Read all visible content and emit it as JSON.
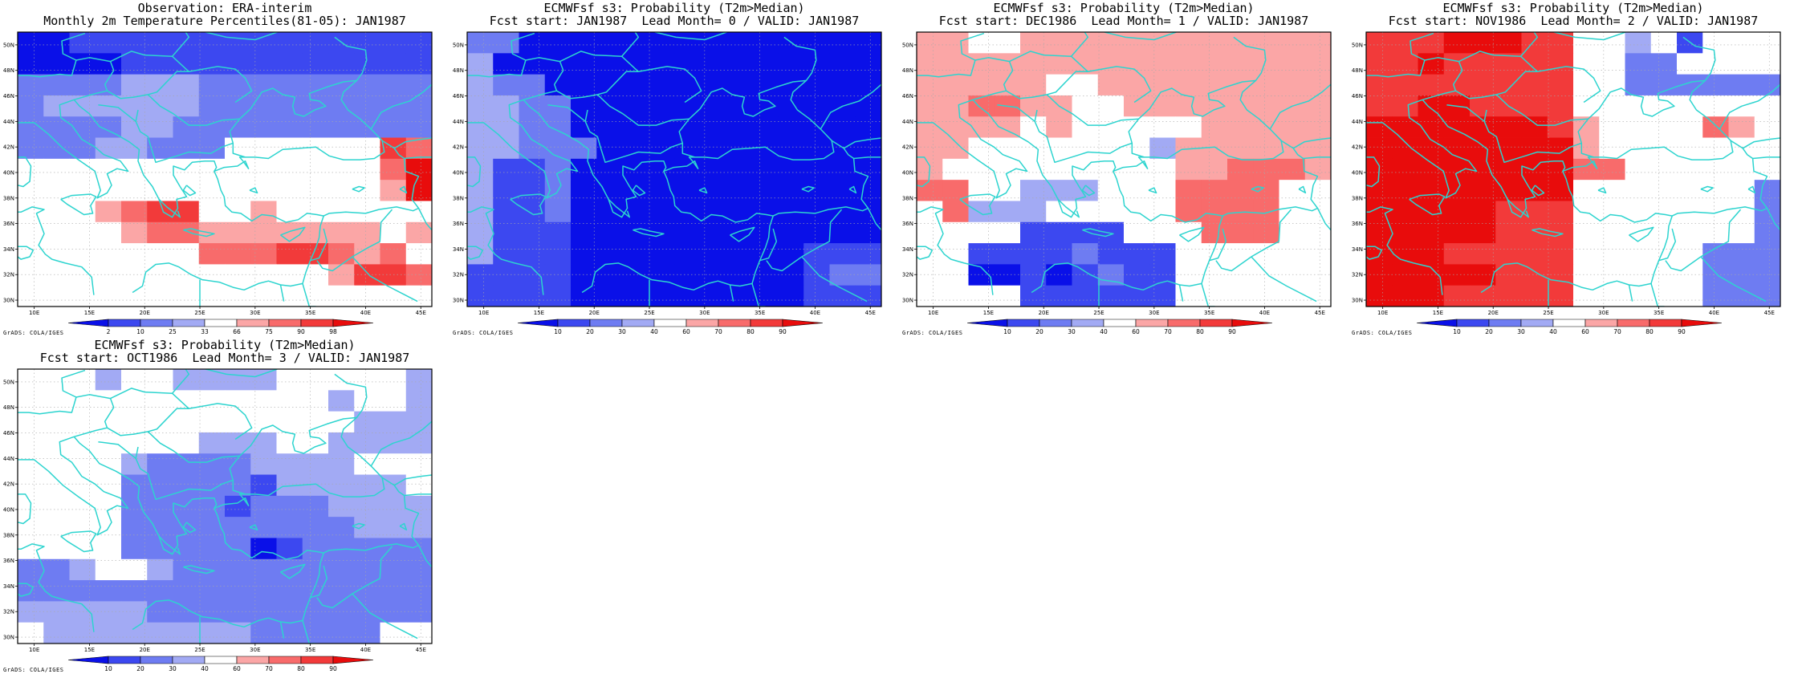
{
  "colors": {
    "white": "#ffffff",
    "coast": "#2dd4cf",
    "frame": "#000000",
    "grid": "#a8a8a8",
    "obs_scale": [
      "#0a10e8",
      "#3c48f0",
      "#6e7cf2",
      "#a2aaf4",
      "#ffffff",
      "#fba6a6",
      "#f86b6b",
      "#f23a3a",
      "#e80c0c"
    ],
    "prob_scale": [
      "#0a10e8",
      "#3c48f0",
      "#6e7cf2",
      "#a2aaf4",
      "#ffffff",
      "#fba6a6",
      "#f86b6b",
      "#f23a3a",
      "#e80c0c"
    ]
  },
  "credit": "GrADS: COLA/IGES",
  "lon_labels": [
    "10E",
    "15E",
    "20E",
    "25E",
    "30E",
    "35E",
    "40E",
    "45E"
  ],
  "lat_labels": [
    "30N",
    "32N",
    "34N",
    "36N",
    "38N",
    "40N",
    "42N",
    "44N",
    "46N",
    "48N",
    "50N"
  ],
  "obs_colorbar_labels": [
    "2",
    "10",
    "25",
    "33",
    "66",
    "75",
    "90",
    "98"
  ],
  "prob_colorbar_labels": [
    "10",
    "20",
    "30",
    "40",
    "60",
    "70",
    "80",
    "90"
  ],
  "panels": [
    {
      "id": "observation",
      "title1": "Observation: ERA-interim",
      "title2": "Monthly 2m Temperature Percentiles(81-05): JAN1987",
      "scale": "obs",
      "grid": [
        "0011111111111111",
        "0000111111111111",
        "2222333222222222",
        "2333333222222222",
        "2222332222222222",
        "2223322244444476",
        "4444444444444468",
        "4444444444444458",
        "4445677445444444",
        "4444566555555545",
        "4444444666776564",
        "4444444444445776",
        "4444444444444444"
      ]
    },
    {
      "id": "lead0",
      "title1": "ECMWFsf s3: Probability (T2m>Median)",
      "title2": "Fcst start: JAN1987  Lead Month= 0 / VALID: JAN1987",
      "scale": "prob",
      "grid": [
        "2200000000000000",
        "3000000000000000",
        "3220000000000000",
        "3322000000000000",
        "3322000000000000",
        "3322200000000000",
        "3112000000000000",
        "3112000000000000",
        "3112000000000000",
        "3111000000000000",
        "3111000000000111",
        "1111000000000122",
        "1111000000000111"
      ]
    },
    {
      "id": "lead1",
      "title1": "ECMWFsf s3: Probability (T2m>Median)",
      "title2": "Fcst start: DEC1986  Lead Month= 1 / VALID: JAN1987",
      "scale": "prob",
      "grid": [
        "5544555555555555",
        "5555555555555555",
        "5555544555555555",
        "5566554455555555",
        "5555454444455555",
        "5544444443555555",
        "5444444444556665",
        "6644333444666644",
        "4633344444666644",
        "4444111144466644",
        "4411112111444444",
        "4400101211444444",
        "4444111111444444"
      ]
    },
    {
      "id": "lead2",
      "title1": "ECMWFsf s3: Probability (T2m>Median)",
      "title2": "Fcst start: NOV1986  Lead Month= 2 / VALID: JAN1987",
      "scale": "prob",
      "grid": [
        "7778887744341444",
        "7787777744224444",
        "7777777744222222",
        "7788777744444444",
        "8888888754444654",
        "8888888854444444",
        "8888888866444444",
        "8888888844444442",
        "8888877744444442",
        "8888877744444442",
        "8887777744444222",
        "8888877744444222",
        "8887777744444222"
      ]
    },
    {
      "id": "lead3",
      "title1": "ECMWFsf s3: Probability (T2m>Median)",
      "title2": "Fcst start: OCT1986  Lead Month= 3 / VALID: JAN1987",
      "scale": "prob",
      "grid": [
        "4443443333444443",
        "4444444444443443",
        "4444444444444333",
        "4444444333443333",
        "4444322223333444",
        "4444222221333334",
        "4444222212223333",
        "4444222222222333",
        "4444222220122222",
        "2234432222222222",
        "2222222222222222",
        "3333322222222222",
        "4333333332222244"
      ]
    }
  ]
}
